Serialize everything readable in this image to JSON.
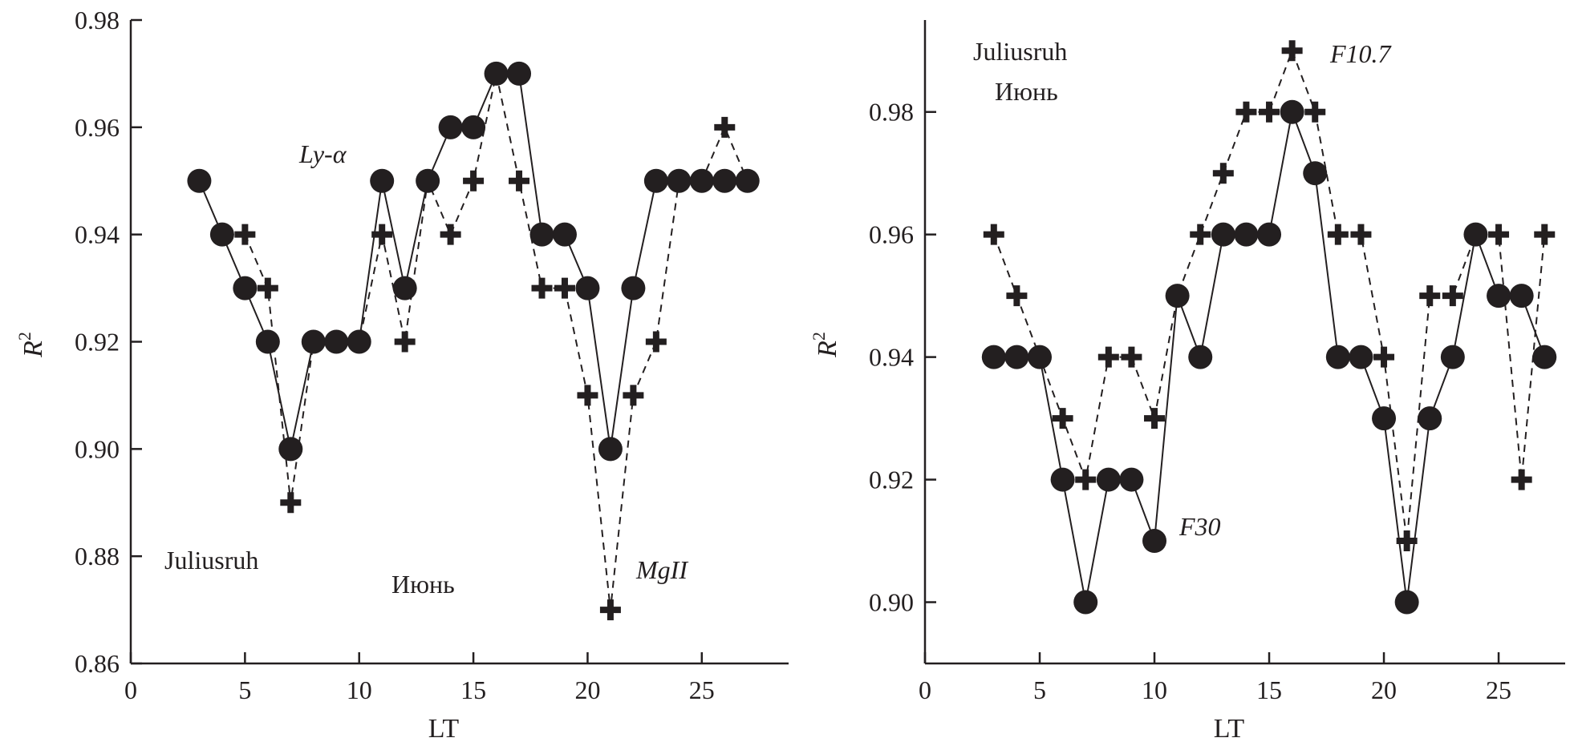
{
  "chart_data": [
    {
      "type": "line",
      "xlabel": "LT",
      "ylabel": "R",
      "ylabel_sup": "2",
      "xlim": [
        0,
        28.8
      ],
      "ylim": [
        0.86,
        0.98
      ],
      "xticks": [
        0,
        5,
        10,
        15,
        20,
        25
      ],
      "yticks": [
        0.86,
        0.88,
        0.9,
        0.92,
        0.94,
        0.96,
        0.98
      ],
      "ytick_labels": [
        "0.86",
        "0.88",
        "0.90",
        "0.92",
        "0.94",
        "0.96",
        "0.98"
      ],
      "annotations": {
        "station": "Juliusruh",
        "month": "Июнь",
        "series_a": "Ly-α",
        "series_b": "MgII"
      },
      "series": [
        {
          "name": "Ly-α",
          "marker": "circle",
          "line": "solid",
          "x": [
            3,
            4,
            5,
            6,
            7,
            8,
            9,
            10,
            11,
            12,
            13,
            14,
            15,
            16,
            17,
            18,
            19,
            20,
            21,
            22,
            23,
            24,
            25,
            26,
            27
          ],
          "y": [
            0.95,
            0.94,
            0.93,
            0.92,
            0.9,
            0.92,
            0.92,
            0.92,
            0.95,
            0.93,
            0.95,
            0.96,
            0.96,
            0.97,
            0.97,
            0.94,
            0.94,
            0.93,
            0.9,
            0.93,
            0.95,
            0.95,
            0.95,
            0.95,
            0.95
          ]
        },
        {
          "name": "MgII",
          "marker": "cross",
          "line": "dashed",
          "x": [
            5,
            6,
            7,
            8,
            9,
            10,
            11,
            12,
            13,
            14,
            15,
            16,
            17,
            18,
            19,
            20,
            21,
            22,
            23,
            24,
            25,
            26,
            27
          ],
          "y": [
            0.94,
            0.93,
            0.89,
            0.92,
            0.92,
            0.92,
            0.94,
            0.92,
            0.95,
            0.94,
            0.95,
            0.97,
            0.95,
            0.93,
            0.93,
            0.91,
            0.87,
            0.91,
            0.92,
            0.95,
            0.95,
            0.96,
            0.95
          ]
        }
      ]
    },
    {
      "type": "line",
      "xlabel": "LT",
      "ylabel": "R",
      "ylabel_sup": "2",
      "xlim": [
        0,
        27.9
      ],
      "ylim": [
        0.89,
        0.995
      ],
      "xticks": [
        0,
        5,
        10,
        15,
        20,
        25
      ],
      "yticks": [
        0.9,
        0.92,
        0.94,
        0.96,
        0.98
      ],
      "ytick_labels": [
        "0.90",
        "0.92",
        "0.94",
        "0.96",
        "0.98"
      ],
      "annotations": {
        "station": "Juliusruh",
        "month": "Июнь",
        "series_a": "F30",
        "series_b": "F10.7"
      },
      "series": [
        {
          "name": "F30",
          "marker": "circle",
          "line": "solid",
          "x": [
            3,
            4,
            5,
            6,
            7,
            8,
            9,
            10,
            11,
            12,
            13,
            14,
            15,
            16,
            17,
            18,
            19,
            20,
            21,
            22,
            23,
            24,
            25,
            26,
            27
          ],
          "y": [
            0.94,
            0.94,
            0.94,
            0.92,
            0.9,
            0.92,
            0.92,
            0.91,
            0.95,
            0.94,
            0.96,
            0.96,
            0.96,
            0.98,
            0.97,
            0.94,
            0.94,
            0.93,
            0.9,
            0.93,
            0.94,
            0.96,
            0.95,
            0.95,
            0.94
          ]
        },
        {
          "name": "F10.7",
          "marker": "cross",
          "line": "dashed",
          "x": [
            3,
            4,
            5,
            6,
            7,
            8,
            9,
            10,
            11,
            12,
            13,
            14,
            15,
            16,
            17,
            18,
            19,
            20,
            21,
            22,
            23,
            24,
            25,
            26,
            27
          ],
          "y": [
            0.96,
            0.95,
            0.94,
            0.93,
            0.92,
            0.94,
            0.94,
            0.93,
            0.95,
            0.96,
            0.97,
            0.98,
            0.98,
            0.99,
            0.98,
            0.96,
            0.96,
            0.94,
            0.91,
            0.95,
            0.95,
            0.96,
            0.96,
            0.92,
            0.96
          ]
        }
      ]
    }
  ],
  "colors": {
    "ink": "#231f20",
    "background": "#ffffff"
  }
}
